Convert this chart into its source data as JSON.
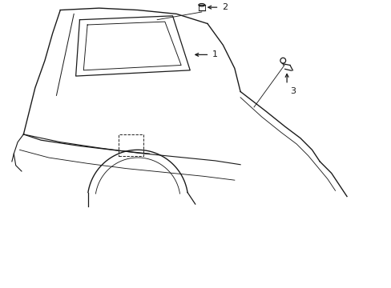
{
  "bg_color": "#ffffff",
  "line_color": "#1a1a1a",
  "lw": 0.9,
  "font_size": 8,
  "label_1": "1",
  "label_2": "2",
  "label_3": "3"
}
